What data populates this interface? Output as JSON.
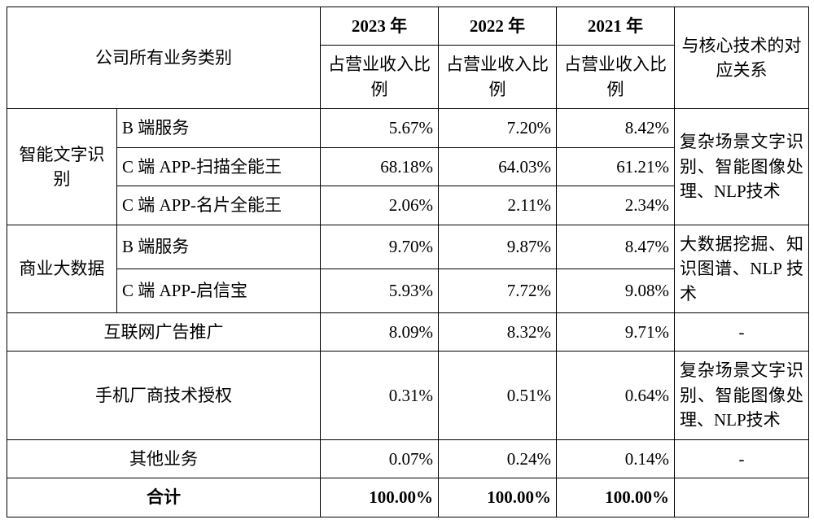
{
  "table": {
    "header": {
      "business_category": "公司所有业务类别",
      "years": [
        "2023 年",
        "2022 年",
        "2021 年"
      ],
      "subheader": "占营业收入比例",
      "relation": "与核心技术的对应关系"
    },
    "groups": [
      {
        "name": "智能文字识别",
        "rows": [
          {
            "label": "B 端服务",
            "y2023": "5.67%",
            "y2022": "7.20%",
            "y2021": "8.42%"
          },
          {
            "label": "C 端 APP-扫描全能王",
            "y2023": "68.18%",
            "y2022": "64.03%",
            "y2021": "61.21%"
          },
          {
            "label": "C 端 APP-名片全能王",
            "y2023": "2.06%",
            "y2022": "2.11%",
            "y2021": "2.34%"
          }
        ],
        "relation": "复杂场景文字识别、智能图像处理、NLP技术"
      },
      {
        "name": "商业大数据",
        "rows": [
          {
            "label": "B 端服务",
            "y2023": "9.70%",
            "y2022": "9.87%",
            "y2021": "8.47%"
          },
          {
            "label": "C 端 APP-启信宝",
            "y2023": "5.93%",
            "y2022": "7.72%",
            "y2021": "9.08%"
          }
        ],
        "relation": "大数据挖掘、知识图谱、NLP 技术"
      }
    ],
    "singles": [
      {
        "label": "互联网广告推广",
        "y2023": "8.09%",
        "y2022": "8.32%",
        "y2021": "9.71%",
        "relation": "-"
      },
      {
        "label": "手机厂商技术授权",
        "y2023": "0.31%",
        "y2022": "0.51%",
        "y2021": "0.64%",
        "relation": "复杂场景文字识别、智能图像处理、NLP技术"
      },
      {
        "label": "其他业务",
        "y2023": "0.07%",
        "y2022": "0.24%",
        "y2021": "0.14%",
        "relation": "-"
      }
    ],
    "total": {
      "label": "合计",
      "y2023": "100.00%",
      "y2022": "100.00%",
      "y2021": "100.00%"
    }
  },
  "style": {
    "border_color": "#000000",
    "background_color": "#ffffff",
    "font_size_pt": 16,
    "font_family": "SimSun"
  }
}
